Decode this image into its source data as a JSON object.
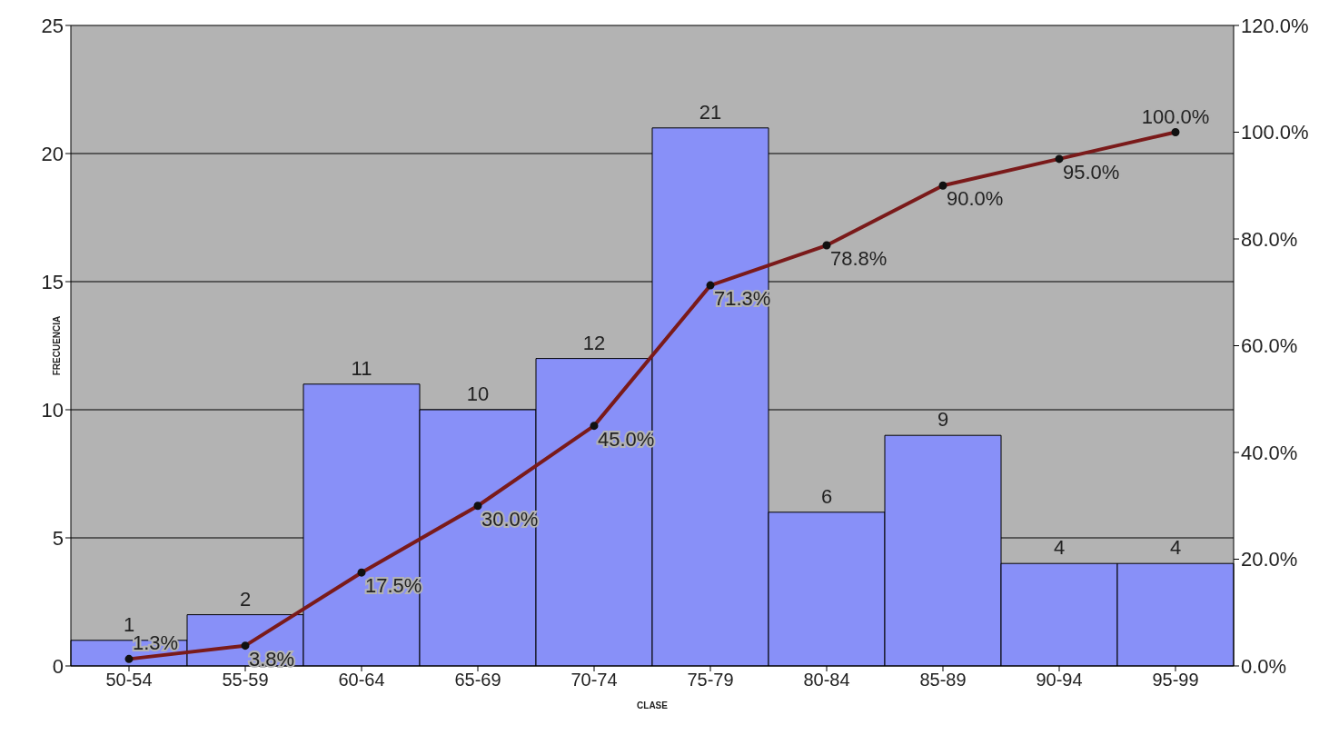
{
  "chart_data": {
    "type": "bar",
    "xlabel": "CLASE",
    "ylabel": "FRECUENCIA",
    "categories": [
      "50-54",
      "55-59",
      "60-64",
      "65-69",
      "70-74",
      "75-79",
      "80-84",
      "85-89",
      "90-94",
      "95-99"
    ],
    "series": [
      {
        "color": "#8890f8",
        "values": [
          1,
          2,
          11,
          10,
          12,
          21,
          6,
          9,
          4,
          4
        ],
        "value_labels": [
          "1",
          "2",
          "11",
          "10",
          "12",
          "21",
          "6",
          "9",
          "4",
          "4"
        ]
      },
      {
        "type": "line",
        "axis": "y2",
        "color": "#7a1a1a",
        "values": [
          1.3,
          3.8,
          17.5,
          30.0,
          45.0,
          71.3,
          78.8,
          90.0,
          95.0,
          100.0
        ],
        "value_labels": [
          "1.3%",
          "3.8%",
          "17.5%",
          "30.0%",
          "45.0%",
          "71.3%",
          "78.8%",
          "90.0%",
          "95.0%",
          "100.0%"
        ]
      }
    ],
    "ylim": [
      0,
      25
    ],
    "yticks": [
      0,
      5,
      10,
      15,
      20,
      25
    ],
    "y2lim": [
      0,
      120
    ],
    "y2ticks": [
      {
        "value": 0,
        "label": "0.0%"
      },
      {
        "value": 20,
        "label": "20.0%"
      },
      {
        "value": 40,
        "label": "40.0%"
      },
      {
        "value": 60,
        "label": "60.0%"
      },
      {
        "value": 80,
        "label": "80.0%"
      },
      {
        "value": 100,
        "label": "100.0%"
      },
      {
        "value": 120,
        "label": "120.0%"
      }
    ],
    "grid": "y",
    "marker": "circle",
    "line_style": "solid"
  }
}
